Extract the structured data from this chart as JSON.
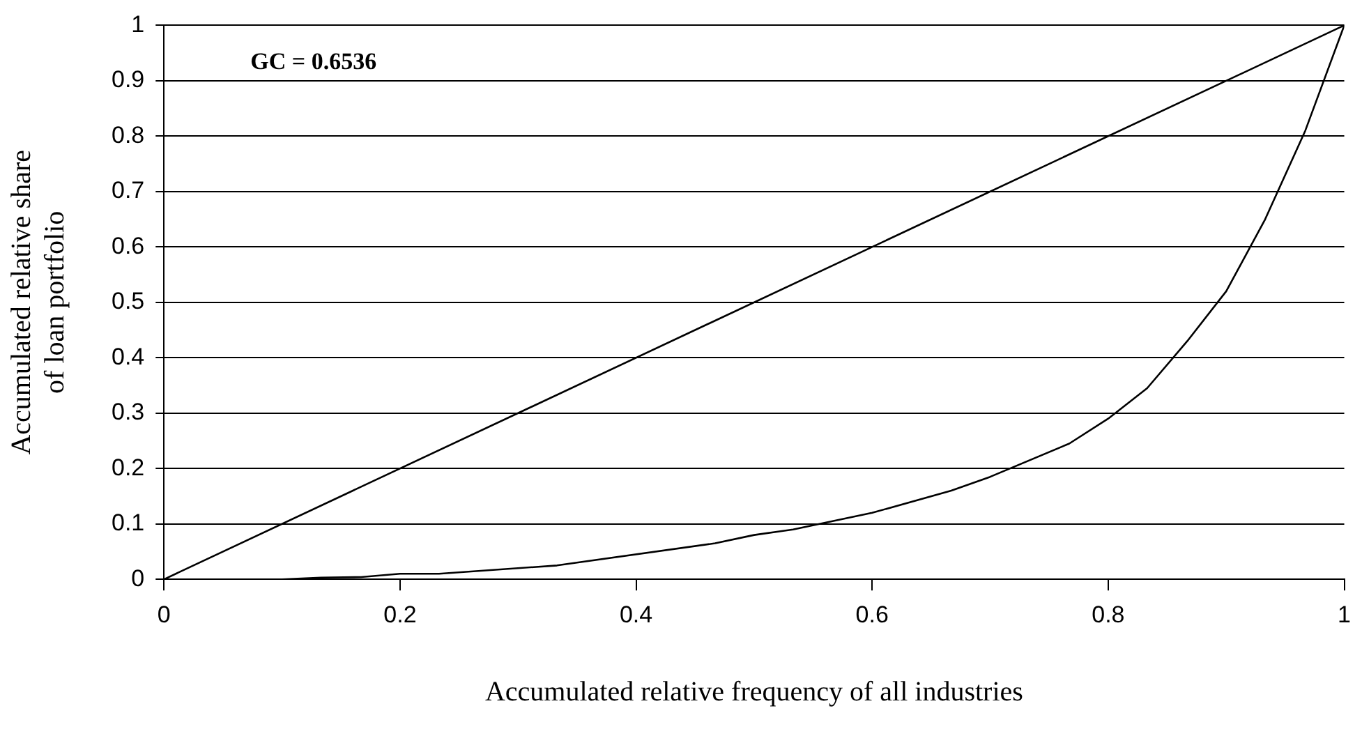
{
  "chart_data": {
    "type": "line",
    "xlabel": "Accumulated relative frequency of all industries",
    "ylabel": "Accumulated relative share\nof loan portfolio",
    "annotations": [
      "GC = 0.6536"
    ],
    "xlim": [
      0,
      1
    ],
    "xticks": [
      0,
      0.2,
      0.4,
      0.6,
      0.8,
      1
    ],
    "ylim": [
      0,
      1
    ],
    "yticks": [
      0,
      0.1,
      0.2,
      0.3,
      0.4,
      0.5,
      0.6,
      0.7,
      0.8,
      0.9,
      1
    ],
    "grid": "y",
    "marker": "none",
    "line_style": "solid",
    "legend": false,
    "series": [
      {
        "color": "#000000",
        "x": [
          0,
          1
        ],
        "values": [
          0,
          1
        ]
      },
      {
        "color": "#000000",
        "x": [
          0,
          0.1,
          0.133,
          0.167,
          0.2,
          0.233,
          0.333,
          0.467,
          0.5,
          0.533,
          0.6,
          0.667,
          0.7,
          0.767,
          0.8,
          0.833,
          0.867,
          0.9,
          0.933,
          0.967,
          1
        ],
        "values": [
          0,
          0,
          0.003,
          0.004,
          0.01,
          0.01,
          0.025,
          0.065,
          0.08,
          0.09,
          0.12,
          0.16,
          0.185,
          0.245,
          0.29,
          0.345,
          0.43,
          0.52,
          0.65,
          0.81,
          1
        ]
      }
    ]
  }
}
